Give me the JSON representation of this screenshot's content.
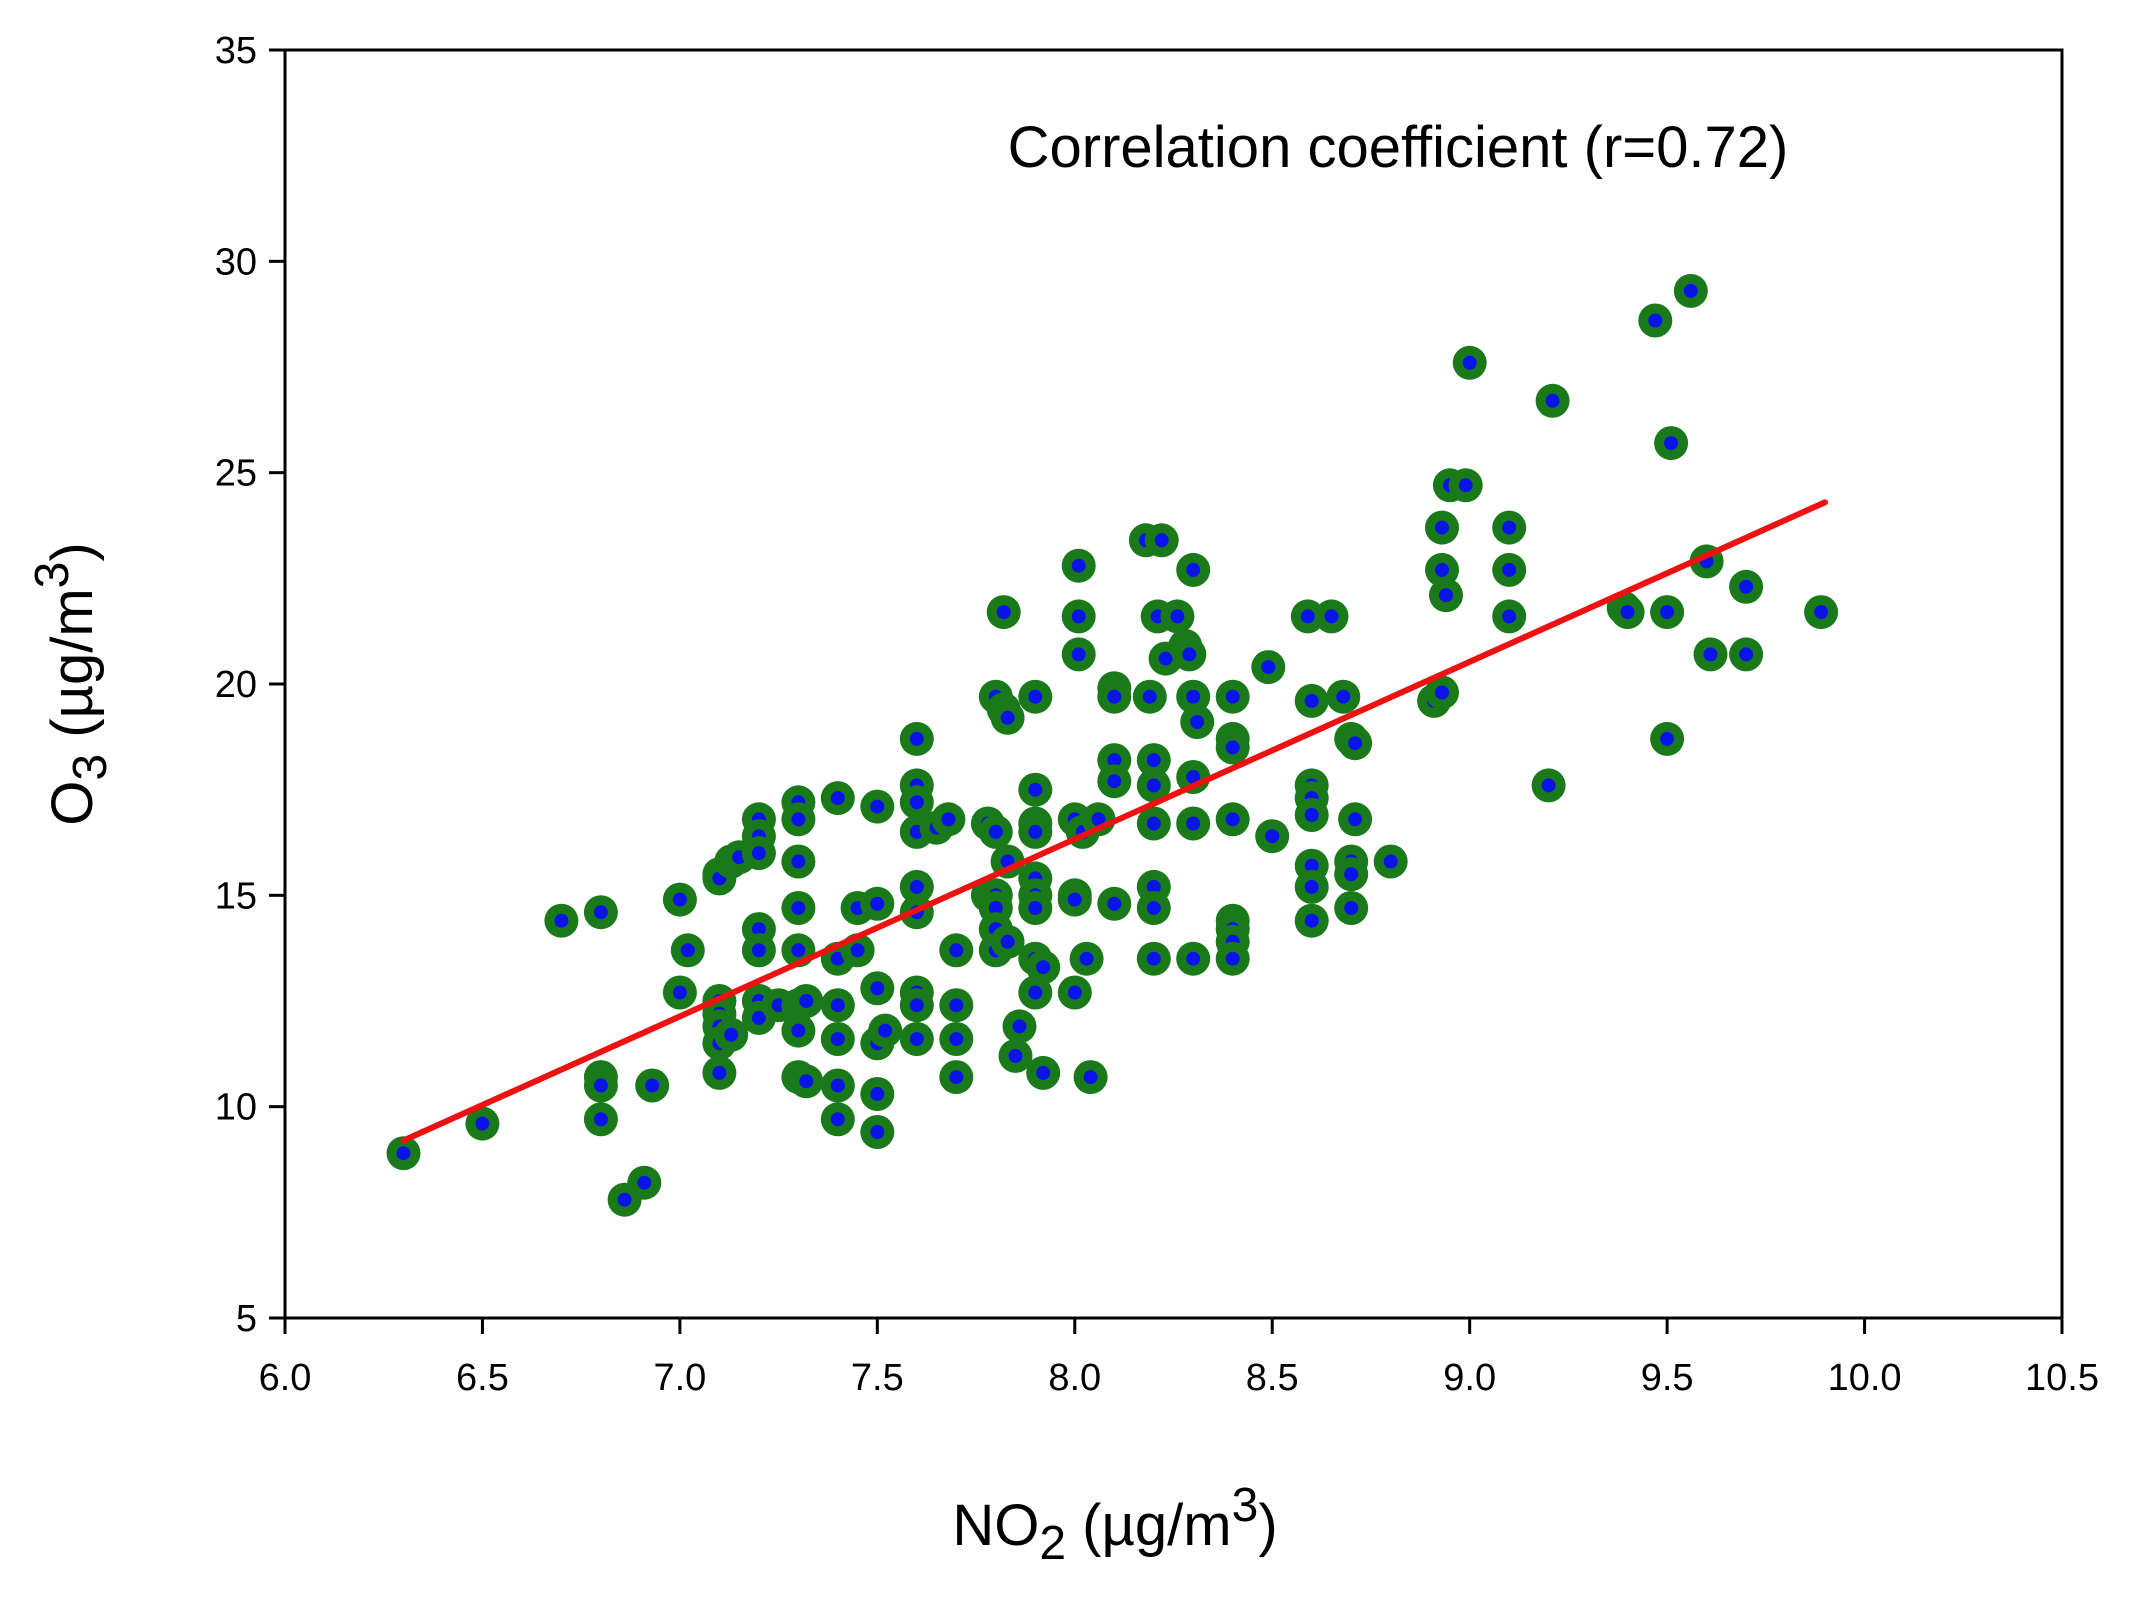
{
  "chart_data": {
    "type": "scatter",
    "annotation": "Correlation coefficient (r=0.72)",
    "xlabel": {
      "base": "NO",
      "sub": "2",
      "unit": " (µg/m",
      "sup": "3",
      "close": ")"
    },
    "ylabel": {
      "base": "O",
      "sub": "3",
      "unit": " (µg/m",
      "sup": "3",
      "close": ")"
    },
    "xlim": [
      6.0,
      10.5
    ],
    "ylim": [
      5,
      35
    ],
    "x_ticks": [
      6.0,
      6.5,
      7.0,
      7.5,
      8.0,
      8.5,
      9.0,
      9.5,
      10.0,
      10.5
    ],
    "x_tick_labels": [
      "6.0",
      "6.5",
      "7.0",
      "7.5",
      "8.0",
      "8.5",
      "9.0",
      "9.5",
      "10.0",
      "10.5"
    ],
    "y_ticks": [
      5,
      10,
      15,
      20,
      25,
      30,
      35
    ],
    "y_tick_labels": [
      "5",
      "10",
      "15",
      "20",
      "25",
      "30",
      "35"
    ],
    "grid": false,
    "point_outer_color": "#1a7a1a",
    "point_inner_color": "#0a14e8",
    "trend_color": "#ee1111",
    "trend_line": {
      "x": [
        6.3,
        9.9
      ],
      "y": [
        9.2,
        24.3
      ]
    },
    "points": [
      [
        6.3,
        8.9
      ],
      [
        6.5,
        9.6
      ],
      [
        6.7,
        14.4
      ],
      [
        6.8,
        14.6
      ],
      [
        6.8,
        10.7
      ],
      [
        6.8,
        10.5
      ],
      [
        6.8,
        9.7
      ],
      [
        6.86,
        7.8
      ],
      [
        6.91,
        8.2
      ],
      [
        6.93,
        10.5
      ],
      [
        7.0,
        14.9
      ],
      [
        7.0,
        12.7
      ],
      [
        7.02,
        13.7
      ],
      [
        7.1,
        15.5
      ],
      [
        7.1,
        15.4
      ],
      [
        7.1,
        12.5
      ],
      [
        7.1,
        12.2
      ],
      [
        7.1,
        11.9
      ],
      [
        7.1,
        11.5
      ],
      [
        7.1,
        10.8
      ],
      [
        7.13,
        15.8
      ],
      [
        7.13,
        11.7
      ],
      [
        7.15,
        15.9
      ],
      [
        7.2,
        16.8
      ],
      [
        7.2,
        16.4
      ],
      [
        7.2,
        16.0
      ],
      [
        7.2,
        14.2
      ],
      [
        7.2,
        13.7
      ],
      [
        7.2,
        12.5
      ],
      [
        7.2,
        12.1
      ],
      [
        7.25,
        12.4
      ],
      [
        7.3,
        17.2
      ],
      [
        7.3,
        16.8
      ],
      [
        7.3,
        15.8
      ],
      [
        7.3,
        14.7
      ],
      [
        7.3,
        13.7
      ],
      [
        7.3,
        12.4
      ],
      [
        7.3,
        11.8
      ],
      [
        7.3,
        10.7
      ],
      [
        7.32,
        12.5
      ],
      [
        7.32,
        10.6
      ],
      [
        7.4,
        17.3
      ],
      [
        7.4,
        13.5
      ],
      [
        7.4,
        12.4
      ],
      [
        7.4,
        11.6
      ],
      [
        7.4,
        10.5
      ],
      [
        7.4,
        9.7
      ],
      [
        7.45,
        14.7
      ],
      [
        7.45,
        13.7
      ],
      [
        7.5,
        17.1
      ],
      [
        7.5,
        14.8
      ],
      [
        7.5,
        12.8
      ],
      [
        7.5,
        11.5
      ],
      [
        7.5,
        10.3
      ],
      [
        7.5,
        9.4
      ],
      [
        7.52,
        11.8
      ],
      [
        7.6,
        18.7
      ],
      [
        7.6,
        17.6
      ],
      [
        7.6,
        17.2
      ],
      [
        7.6,
        16.5
      ],
      [
        7.6,
        15.2
      ],
      [
        7.6,
        14.6
      ],
      [
        7.6,
        12.7
      ],
      [
        7.6,
        12.4
      ],
      [
        7.6,
        11.6
      ],
      [
        7.65,
        16.6
      ],
      [
        7.68,
        16.8
      ],
      [
        7.7,
        13.7
      ],
      [
        7.7,
        12.4
      ],
      [
        7.7,
        11.6
      ],
      [
        7.7,
        10.7
      ],
      [
        7.78,
        16.7
      ],
      [
        7.78,
        15.0
      ],
      [
        7.8,
        19.7
      ],
      [
        7.8,
        16.5
      ],
      [
        7.8,
        15.0
      ],
      [
        7.8,
        14.7
      ],
      [
        7.8,
        14.2
      ],
      [
        7.8,
        13.7
      ],
      [
        7.82,
        21.7
      ],
      [
        7.82,
        19.4
      ],
      [
        7.83,
        19.2
      ],
      [
        7.83,
        15.8
      ],
      [
        7.83,
        13.9
      ],
      [
        7.85,
        11.2
      ],
      [
        7.86,
        11.9
      ],
      [
        7.9,
        19.7
      ],
      [
        7.9,
        17.5
      ],
      [
        7.9,
        16.7
      ],
      [
        7.9,
        16.5
      ],
      [
        7.9,
        15.4
      ],
      [
        7.9,
        15.0
      ],
      [
        7.9,
        14.7
      ],
      [
        7.9,
        13.5
      ],
      [
        7.9,
        12.7
      ],
      [
        7.92,
        13.3
      ],
      [
        7.92,
        10.8
      ],
      [
        8.0,
        16.8
      ],
      [
        8.0,
        15.0
      ],
      [
        8.0,
        14.9
      ],
      [
        8.0,
        12.7
      ],
      [
        8.01,
        22.8
      ],
      [
        8.01,
        21.6
      ],
      [
        8.01,
        20.7
      ],
      [
        8.02,
        16.5
      ],
      [
        8.03,
        13.5
      ],
      [
        8.04,
        10.7
      ],
      [
        8.06,
        16.8
      ],
      [
        8.1,
        19.9
      ],
      [
        8.1,
        19.7
      ],
      [
        8.1,
        18.2
      ],
      [
        8.1,
        17.7
      ],
      [
        8.1,
        14.8
      ],
      [
        8.18,
        23.4
      ],
      [
        8.19,
        19.7
      ],
      [
        8.2,
        18.2
      ],
      [
        8.2,
        17.6
      ],
      [
        8.2,
        16.7
      ],
      [
        8.2,
        15.2
      ],
      [
        8.2,
        14.7
      ],
      [
        8.2,
        13.5
      ],
      [
        8.21,
        21.6
      ],
      [
        8.22,
        23.4
      ],
      [
        8.23,
        20.6
      ],
      [
        8.26,
        21.6
      ],
      [
        8.28,
        20.9
      ],
      [
        8.29,
        20.7
      ],
      [
        8.3,
        22.7
      ],
      [
        8.3,
        19.7
      ],
      [
        8.3,
        17.8
      ],
      [
        8.3,
        16.7
      ],
      [
        8.3,
        13.5
      ],
      [
        8.31,
        19.1
      ],
      [
        8.4,
        19.7
      ],
      [
        8.4,
        18.7
      ],
      [
        8.4,
        18.5
      ],
      [
        8.4,
        16.8
      ],
      [
        8.4,
        14.4
      ],
      [
        8.4,
        14.2
      ],
      [
        8.4,
        13.9
      ],
      [
        8.4,
        13.5
      ],
      [
        8.49,
        20.4
      ],
      [
        8.5,
        16.4
      ],
      [
        8.59,
        21.6
      ],
      [
        8.6,
        19.6
      ],
      [
        8.6,
        17.6
      ],
      [
        8.6,
        17.3
      ],
      [
        8.6,
        16.9
      ],
      [
        8.6,
        15.7
      ],
      [
        8.6,
        15.2
      ],
      [
        8.6,
        14.4
      ],
      [
        8.65,
        21.6
      ],
      [
        8.68,
        19.7
      ],
      [
        8.7,
        18.7
      ],
      [
        8.7,
        15.8
      ],
      [
        8.7,
        15.5
      ],
      [
        8.7,
        14.7
      ],
      [
        8.71,
        16.8
      ],
      [
        8.71,
        18.6
      ],
      [
        8.8,
        15.8
      ],
      [
        8.91,
        19.6
      ],
      [
        8.93,
        23.7
      ],
      [
        8.93,
        22.7
      ],
      [
        8.93,
        19.8
      ],
      [
        8.94,
        22.1
      ],
      [
        8.95,
        24.7
      ],
      [
        8.99,
        24.7
      ],
      [
        9.0,
        27.6
      ],
      [
        9.1,
        23.7
      ],
      [
        9.1,
        22.7
      ],
      [
        9.1,
        21.6
      ],
      [
        9.2,
        17.6
      ],
      [
        9.21,
        26.7
      ],
      [
        9.39,
        21.8
      ],
      [
        9.4,
        21.7
      ],
      [
        9.47,
        28.6
      ],
      [
        9.5,
        21.7
      ],
      [
        9.5,
        18.7
      ],
      [
        9.51,
        25.7
      ],
      [
        9.56,
        29.3
      ],
      [
        9.6,
        22.9
      ],
      [
        9.61,
        20.7
      ],
      [
        9.7,
        22.3
      ],
      [
        9.7,
        20.7
      ],
      [
        9.89,
        21.7
      ]
    ]
  }
}
